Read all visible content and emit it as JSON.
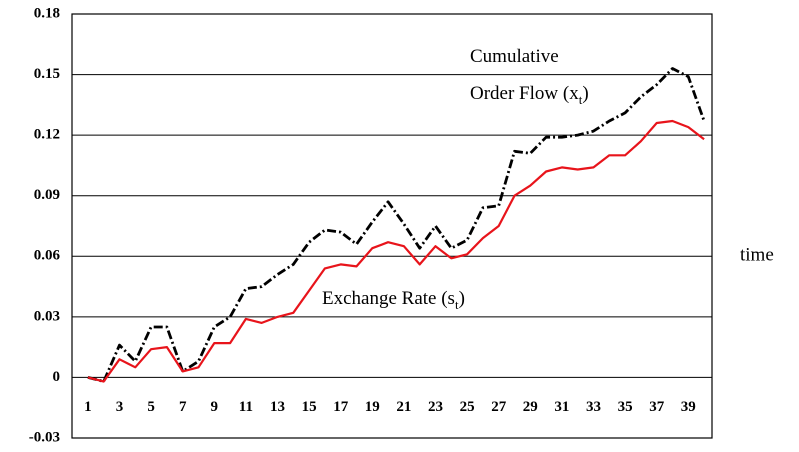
{
  "chart_data": {
    "type": "line",
    "categories": [
      "1",
      null,
      "3",
      null,
      "5",
      null,
      "7",
      null,
      "9",
      null,
      "11",
      null,
      "13",
      null,
      "15",
      null,
      "17",
      null,
      "19",
      null,
      "21",
      null,
      "23",
      null,
      "25",
      null,
      "27",
      null,
      "29",
      null,
      "31",
      null,
      "33",
      null,
      "35",
      null,
      "37",
      null,
      "39",
      null
    ],
    "series": [
      {
        "color": "#000000",
        "style": "dash-dot",
        "values": [
          0,
          -0.002,
          0.016,
          0.008,
          0.025,
          0.025,
          0.003,
          0.008,
          0.025,
          0.03,
          0.044,
          0.045,
          0.051,
          0.056,
          0.067,
          0.073,
          0.072,
          0.066,
          0.077,
          0.087,
          0.076,
          0.064,
          0.075,
          0.064,
          0.068,
          0.084,
          0.085,
          0.112,
          0.111,
          0.119,
          0.119,
          0.12,
          0.122,
          0.127,
          0.131,
          0.139,
          0.145,
          0.153,
          0.149,
          0.127
        ]
      },
      {
        "color": "#e8141b",
        "style": "solid",
        "values": [
          0,
          -0.002,
          0.009,
          0.005,
          0.014,
          0.015,
          0.003,
          0.005,
          0.017,
          0.017,
          0.029,
          0.027,
          0.03,
          0.032,
          0.043,
          0.054,
          0.056,
          0.055,
          0.064,
          0.067,
          0.065,
          0.056,
          0.065,
          0.059,
          0.061,
          0.069,
          0.075,
          0.09,
          0.095,
          0.102,
          0.104,
          0.103,
          0.104,
          0.11,
          0.11,
          0.117,
          0.126,
          0.127,
          0.124,
          0.118
        ]
      }
    ],
    "ylim": [
      -0.03,
      0.18
    ],
    "yticks": [
      -0.03,
      0,
      0.03,
      0.06,
      0.09,
      0.12,
      0.15,
      0.18
    ],
    "grid": true,
    "x_label": "time",
    "annotations": [
      {
        "parts": [
          "Cumulative"
        ]
      },
      {
        "parts": [
          "Order Flow (x",
          "t",
          ")"
        ]
      },
      {
        "parts": [
          "Exchange Rate (s",
          "t",
          ")"
        ]
      }
    ]
  }
}
